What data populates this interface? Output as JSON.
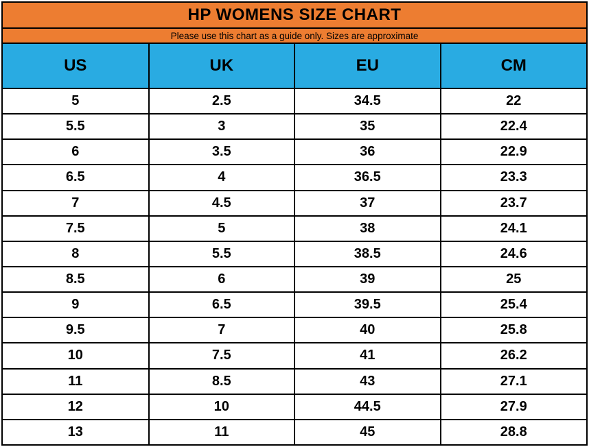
{
  "header": {
    "title": "HP WOMENS SIZE CHART",
    "subtitle": "Please use this chart as a guide only. Sizes are approximate"
  },
  "table": {
    "columns": [
      "US",
      "UK",
      "EU",
      "CM"
    ],
    "rows": [
      [
        "5",
        "2.5",
        "34.5",
        "22"
      ],
      [
        "5.5",
        "3",
        "35",
        "22.4"
      ],
      [
        "6",
        "3.5",
        "36",
        "22.9"
      ],
      [
        "6.5",
        "4",
        "36.5",
        "23.3"
      ],
      [
        "7",
        "4.5",
        "37",
        "23.7"
      ],
      [
        "7.5",
        "5",
        "38",
        "24.1"
      ],
      [
        "8",
        "5.5",
        "38.5",
        "24.6"
      ],
      [
        "8.5",
        "6",
        "39",
        "25"
      ],
      [
        "9",
        "6.5",
        "39.5",
        "25.4"
      ],
      [
        "9.5",
        "7",
        "40",
        "25.8"
      ],
      [
        "10",
        "7.5",
        "41",
        "26.2"
      ],
      [
        "11",
        "8.5",
        "43",
        "27.1"
      ],
      [
        "12",
        "10",
        "44.5",
        "27.9"
      ],
      [
        "13",
        "11",
        "45",
        "28.8"
      ]
    ]
  },
  "colors": {
    "title_band": "#ED7D31",
    "subtitle_band": "#ED7D31",
    "header_row": "#29ABE2",
    "grid_line": "#000000",
    "text": "#000000",
    "row_background": "#ffffff"
  },
  "chart_data": {
    "type": "table",
    "title": "HP WOMENS SIZE CHART",
    "subtitle": "Please use this chart as a guide only. Sizes are approximate",
    "columns": [
      "US",
      "UK",
      "EU",
      "CM"
    ],
    "series": [
      {
        "name": "US",
        "values": [
          5,
          5.5,
          6,
          6.5,
          7,
          7.5,
          8,
          8.5,
          9,
          9.5,
          10,
          11,
          12,
          13
        ]
      },
      {
        "name": "UK",
        "values": [
          2.5,
          3,
          3.5,
          4,
          4.5,
          5,
          5.5,
          6,
          6.5,
          7,
          7.5,
          8.5,
          10,
          11
        ]
      },
      {
        "name": "EU",
        "values": [
          34.5,
          35,
          36,
          36.5,
          37,
          38,
          38.5,
          39,
          39.5,
          40,
          41,
          43,
          44.5,
          45
        ]
      },
      {
        "name": "CM",
        "values": [
          22,
          22.4,
          22.9,
          23.3,
          23.7,
          24.1,
          24.6,
          25,
          25.4,
          25.8,
          26.2,
          27.1,
          27.9,
          28.8
        ]
      }
    ]
  }
}
